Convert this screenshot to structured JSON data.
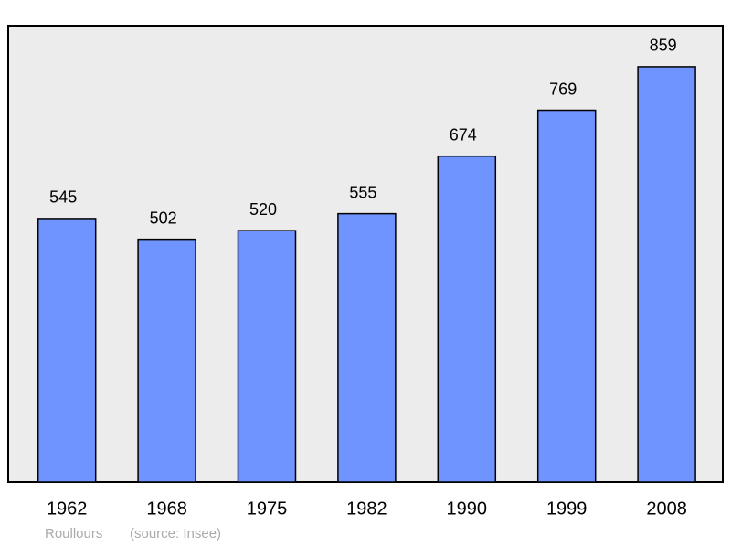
{
  "chart_data": {
    "type": "bar",
    "caption": "Roullours",
    "source": "(source: Insee)",
    "categories": [
      "1962",
      "1968",
      "1975",
      "1982",
      "1990",
      "1999",
      "2008"
    ],
    "values": [
      545,
      502,
      520,
      555,
      674,
      769,
      859
    ],
    "color": "#7094ff",
    "ylim": [
      0,
      944
    ]
  }
}
